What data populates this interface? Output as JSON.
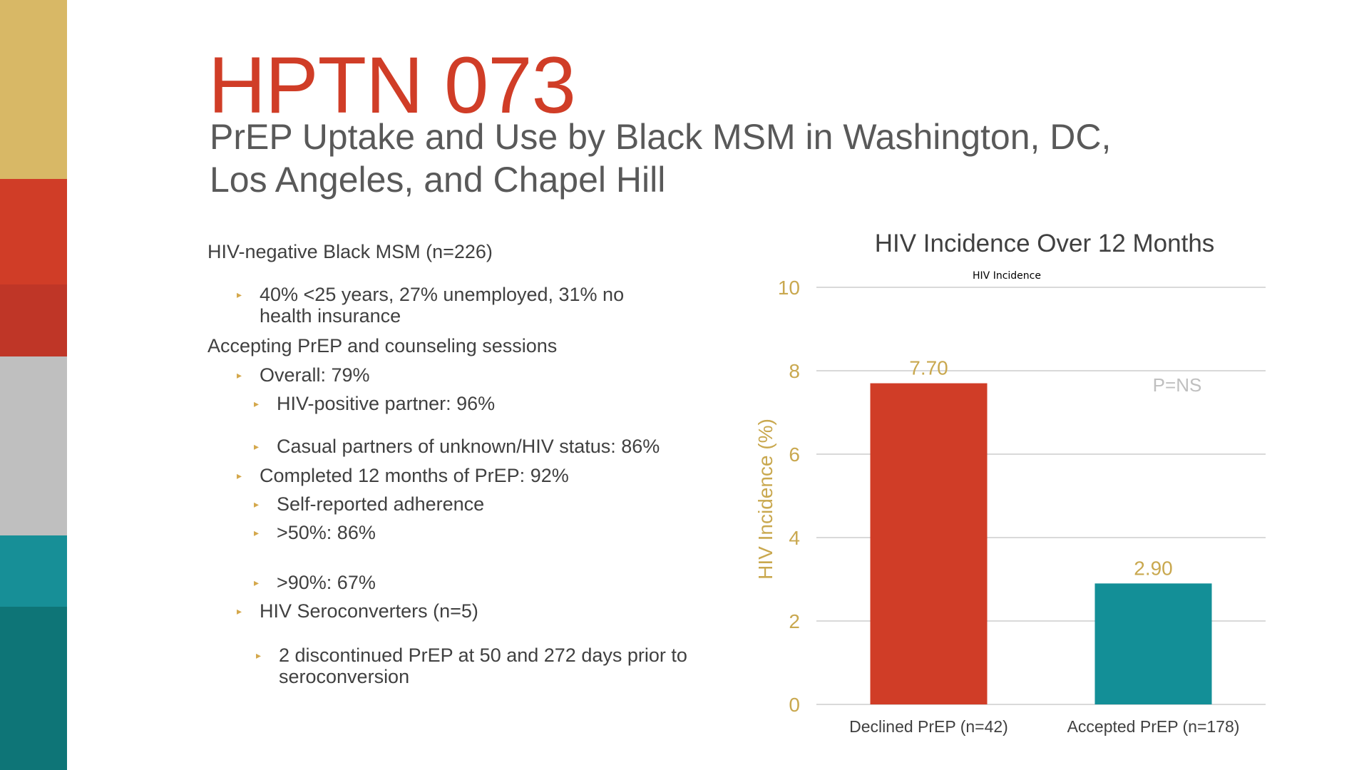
{
  "colors": {
    "stripes": [
      "#d8b866",
      "#d03d27",
      "#bf3627",
      "#bfbfbf",
      "#178f97",
      "#0e7577"
    ],
    "title": "#d03d27",
    "axis_text": "#c9a84f",
    "bar_declined": "#d03d27",
    "bar_accepted": "#138f97"
  },
  "slide": {
    "title": "HPTN 073",
    "subtitle": "PrEP Uptake and Use by Black MSM in Washington, DC, Los Angeles, and Chapel Hill"
  },
  "bullets": {
    "population": "HIV-negative Black MSM (n=226)",
    "demographics": "40% <25 years, 27% unemployed, 31% no health insurance",
    "accepting": "Accepting PrEP and counseling sessions",
    "overall": "Overall: 79%",
    "hiv_positive_partner": "HIV-positive partner: 96%",
    "casual_partners": "Casual partners of unknown/HIV status: 86%",
    "completed": "Completed 12 months of PrEP: 92%",
    "self_reported": "Self-reported adherence",
    "gt50": ">50%: 86%",
    "gt90": ">90%: 67%",
    "seroconverters": "HIV Seroconverters (n=5)",
    "discontinued": "2 discontinued PrEP at 50 and 272 days prior to seroconversion"
  },
  "chart_data": {
    "type": "bar",
    "title": "HIV Incidence Over 12 Months",
    "legend_label": "HIV Incidence",
    "ylabel": "HIV Incidence (%)",
    "xlabel": "",
    "categories": [
      "Declined PrEP (n=42)",
      "Accepted PrEP (n=178)"
    ],
    "values": [
      7.7,
      2.9
    ],
    "value_labels": [
      "7.70",
      "2.90"
    ],
    "ylim": [
      0,
      10
    ],
    "yticks": [
      0,
      2,
      4,
      6,
      8,
      10
    ],
    "grid": true,
    "annotation": "P=NS"
  }
}
